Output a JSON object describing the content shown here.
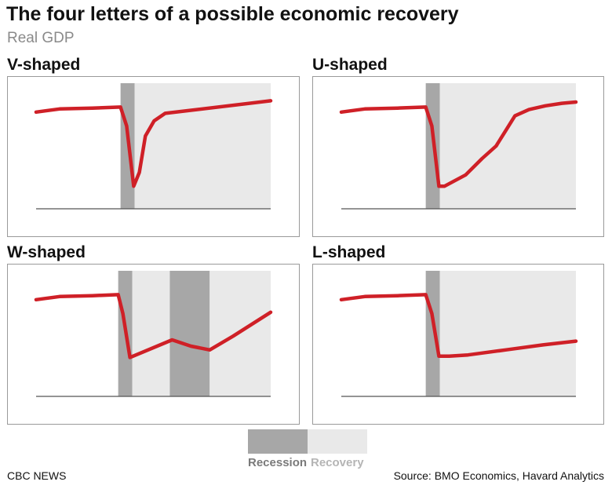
{
  "title": "The four letters of a possible economic recovery",
  "subtitle": "Real GDP",
  "colors": {
    "line": "#cf2027",
    "recession": "#a7a7a7",
    "recovery": "#e9e9e9",
    "axis": "#555555",
    "border": "#9a9a9a"
  },
  "chart_data": [
    {
      "type": "line",
      "title": "V-shaped",
      "xlim": [
        0,
        100
      ],
      "ylim": [
        0,
        100
      ],
      "bands": [
        {
          "kind": "recession",
          "x": [
            36,
            42
          ]
        },
        {
          "kind": "recovery",
          "x": [
            42,
            100
          ]
        }
      ],
      "x": [
        0,
        4,
        10,
        24,
        36,
        38.6,
        41.6,
        44,
        46.6,
        50.3,
        55,
        100
      ],
      "y": [
        77,
        78,
        79.5,
        80.2,
        81,
        66,
        18,
        29,
        58,
        70,
        76,
        86
      ]
    },
    {
      "type": "line",
      "title": "U-shaped",
      "xlim": [
        0,
        100
      ],
      "ylim": [
        0,
        100
      ],
      "bands": [
        {
          "kind": "recession",
          "x": [
            36,
            42
          ]
        },
        {
          "kind": "recovery",
          "x": [
            42,
            100
          ]
        }
      ],
      "x": [
        0,
        4,
        10,
        24,
        36,
        38.6,
        41.6,
        44,
        48,
        53,
        60,
        66,
        70,
        74,
        80,
        87,
        94,
        100
      ],
      "y": [
        77,
        78,
        79.5,
        80.2,
        81,
        66,
        18,
        18,
        22,
        27,
        40,
        50,
        62,
        74,
        79,
        82,
        84,
        85
      ]
    },
    {
      "type": "line",
      "title": "W-shaped",
      "xlim": [
        0,
        100
      ],
      "ylim": [
        0,
        100
      ],
      "bands": [
        {
          "kind": "recession",
          "x": [
            35,
            41
          ]
        },
        {
          "kind": "recovery",
          "x": [
            41,
            57
          ]
        },
        {
          "kind": "recession",
          "x": [
            57,
            74
          ]
        },
        {
          "kind": "recovery",
          "x": [
            74,
            100
          ]
        }
      ],
      "x": [
        0,
        4,
        10,
        24,
        35,
        37,
        40,
        58,
        66,
        74,
        84,
        100
      ],
      "y": [
        77,
        78,
        79.5,
        80.2,
        81,
        66,
        31,
        45,
        40,
        37,
        48,
        67
      ]
    },
    {
      "type": "line",
      "title": "L-shaped",
      "xlim": [
        0,
        100
      ],
      "ylim": [
        0,
        100
      ],
      "bands": [
        {
          "kind": "recession",
          "x": [
            36,
            42
          ]
        },
        {
          "kind": "recovery",
          "x": [
            42,
            100
          ]
        }
      ],
      "x": [
        0,
        4,
        10,
        24,
        36,
        38.6,
        41.6,
        46,
        54,
        70,
        86,
        100
      ],
      "y": [
        77,
        78,
        79.5,
        80.2,
        81,
        66,
        32,
        32,
        33,
        37,
        41,
        44
      ]
    }
  ],
  "legend": {
    "recession_label": "Recession",
    "recovery_label": "Recovery"
  },
  "footer": {
    "brand": "CBC NEWS",
    "source": "Source: BMO Economics, Havard Analytics"
  }
}
